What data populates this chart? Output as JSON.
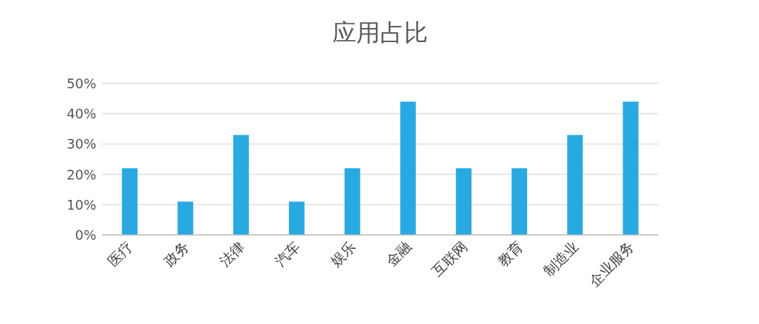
{
  "chart_data": {
    "type": "bar",
    "title": "应用占比",
    "categories": [
      "医疗",
      "政务",
      "法律",
      "汽车",
      "娱乐",
      "金融",
      "互联网",
      "教育",
      "制造业",
      "企业服务"
    ],
    "values": [
      22,
      11,
      33,
      11,
      22,
      44,
      22,
      22,
      33,
      44
    ],
    "color": "#29a9e1",
    "ylim": [
      0,
      50
    ],
    "yticks": [
      {
        "value": 0,
        "label": "0%"
      },
      {
        "value": 10,
        "label": "10%"
      },
      {
        "value": 20,
        "label": "20%"
      },
      {
        "value": 30,
        "label": "30%"
      },
      {
        "value": 40,
        "label": "40%"
      },
      {
        "value": 50,
        "label": "50%"
      }
    ],
    "grid": "y"
  }
}
